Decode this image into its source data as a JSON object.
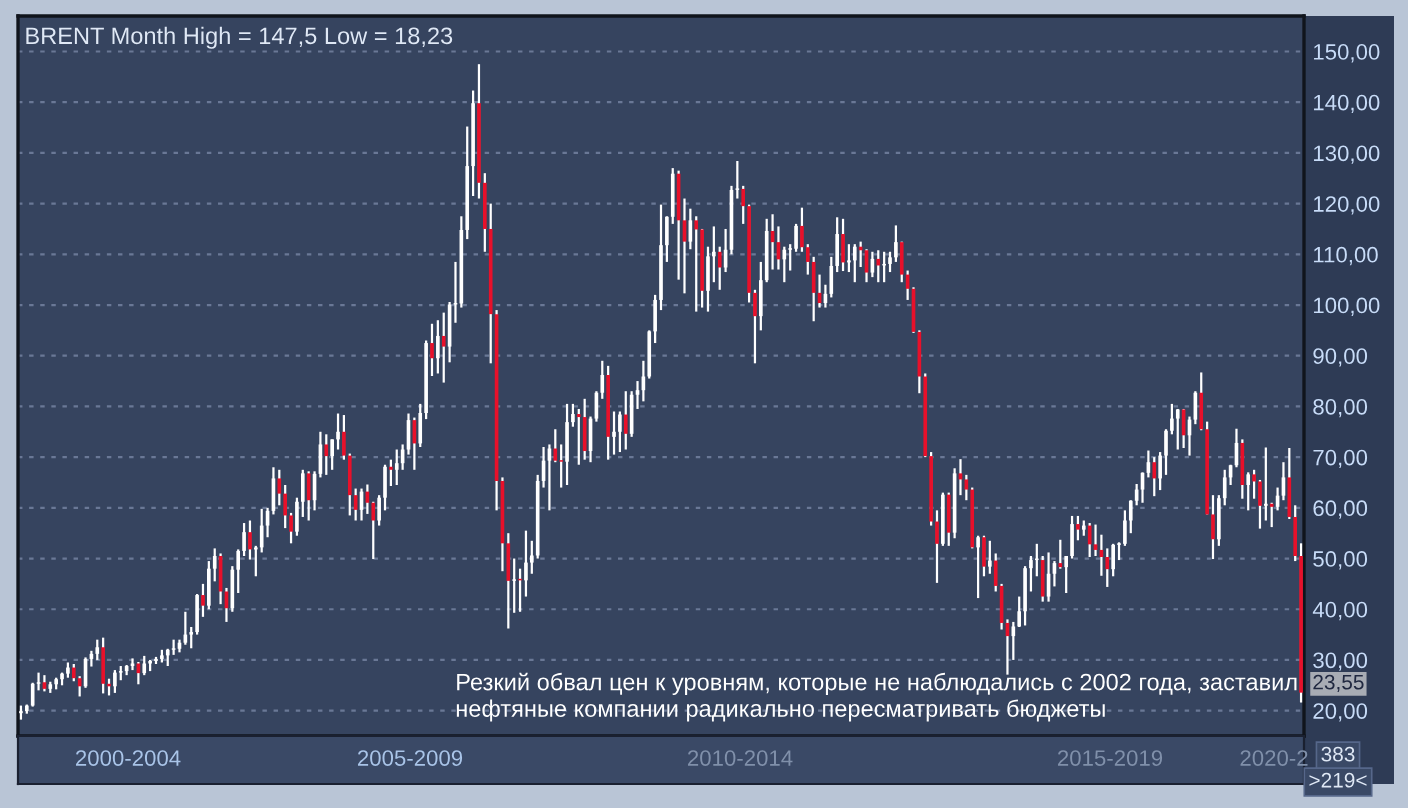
{
  "chart_data": {
    "type": "candlestick",
    "title": "BRENT Month High = 147,5 Low = 18,23",
    "categories": [
      null,
      null,
      null,
      null,
      null,
      null,
      null,
      null,
      null,
      null,
      null,
      null,
      null,
      null,
      null,
      null,
      null,
      null,
      null,
      null,
      null,
      null,
      null,
      null,
      null,
      null,
      null,
      null,
      null,
      null,
      null,
      null,
      null,
      null,
      null,
      null,
      null,
      null,
      null,
      null,
      null,
      null,
      null,
      null,
      null,
      null,
      null,
      null,
      null,
      null,
      null,
      null,
      null,
      null,
      null,
      null,
      null,
      null,
      null,
      null,
      null,
      null,
      null,
      null,
      null,
      null,
      null,
      null,
      null,
      null,
      null,
      null,
      null,
      null,
      null,
      null,
      null,
      null,
      null,
      null,
      null,
      null,
      null,
      null,
      null,
      null,
      null,
      null,
      null,
      null,
      null,
      null,
      null,
      null,
      null,
      null,
      null,
      null,
      null,
      null,
      null,
      null,
      null,
      null,
      null,
      null,
      null,
      null,
      null,
      null,
      null,
      null,
      null,
      null,
      null,
      null,
      null,
      null,
      null,
      null,
      null,
      null,
      null,
      null,
      null,
      null,
      null,
      null,
      null,
      null,
      null,
      null,
      null,
      null,
      null,
      null,
      null,
      null,
      null,
      null,
      null,
      null,
      null,
      null,
      null,
      null,
      null,
      null,
      null,
      null,
      null,
      null,
      null,
      null,
      null,
      null,
      null,
      null,
      null,
      null,
      null,
      null,
      null,
      null,
      null,
      null,
      null,
      null,
      null,
      null,
      null,
      null,
      null,
      null,
      null,
      null,
      null,
      null,
      null,
      null,
      null,
      null,
      null,
      null,
      null,
      null,
      null,
      null,
      null,
      null,
      null,
      null,
      null,
      null,
      null,
      null,
      null,
      null,
      null,
      null,
      null,
      null,
      null,
      null,
      null,
      null,
      null,
      null,
      null,
      null,
      null,
      null,
      null,
      null,
      null,
      null,
      null,
      null,
      null
    ],
    "ohlc": [
      [
        19.5,
        21,
        18.23,
        19.9
      ],
      [
        19.9,
        21.2,
        19.4,
        21
      ],
      [
        21,
        25.5,
        20.8,
        25.3
      ],
      [
        25.3,
        27.5,
        24,
        25.6
      ],
      [
        25.6,
        27,
        23.8,
        24.3
      ],
      [
        24.3,
        25.7,
        23.5,
        25.2
      ],
      [
        25.2,
        26.5,
        24.2,
        26.2
      ],
      [
        26.2,
        27.5,
        25,
        27.3
      ],
      [
        27.3,
        29.5,
        26.5,
        28.5
      ],
      [
        28.5,
        29.2,
        25.8,
        26.4
      ],
      [
        26.4,
        26.8,
        22.8,
        24.8
      ],
      [
        24.8,
        30.5,
        24.5,
        30.2
      ],
      [
        30.2,
        31.8,
        28.7,
        31.2
      ],
      [
        31.2,
        34,
        30,
        32.5
      ],
      [
        32.5,
        34.4,
        23.4,
        25.3
      ],
      [
        25.3,
        26.3,
        23,
        24.8
      ],
      [
        24.8,
        28,
        23.5,
        27.5
      ],
      [
        27.5,
        28.8,
        26,
        27.8
      ],
      [
        27.8,
        29,
        27,
        28.8
      ],
      [
        28.8,
        30.3,
        28,
        29.3
      ],
      [
        29.3,
        29.6,
        25.2,
        27.4
      ],
      [
        27.4,
        30.8,
        27,
        29.3
      ],
      [
        29.3,
        30,
        27.8,
        29.8
      ],
      [
        29.8,
        30.6,
        29.2,
        30.2
      ],
      [
        30.2,
        32,
        29.5,
        30.9
      ],
      [
        30.9,
        32.2,
        28.8,
        32
      ],
      [
        32,
        34,
        31,
        32.2
      ],
      [
        32.2,
        34,
        31.5,
        33.4
      ],
      [
        33.4,
        39.5,
        33,
        35
      ],
      [
        35,
        36.5,
        32.3,
        35.5
      ],
      [
        35.5,
        43,
        35,
        42.8
      ],
      [
        42.8,
        45,
        38.5,
        40.7
      ],
      [
        40.7,
        49.5,
        40,
        48
      ],
      [
        48,
        52,
        45.5,
        50.5
      ],
      [
        50.5,
        51,
        41,
        43.5
      ],
      [
        43.5,
        44.2,
        37.5,
        40.2
      ],
      [
        40.2,
        48.5,
        39.5,
        47.8
      ],
      [
        47.8,
        51.8,
        43.2,
        51.5
      ],
      [
        51.5,
        57,
        50.5,
        55.2
      ],
      [
        55.2,
        57.5,
        49.8,
        51.8
      ],
      [
        51.8,
        52.5,
        46.5,
        52.2
      ],
      [
        52.2,
        59.8,
        51.2,
        56.5
      ],
      [
        56.5,
        60,
        54.2,
        59.4
      ],
      [
        59.4,
        68,
        58.7,
        65.8
      ],
      [
        65.8,
        67.5,
        60.5,
        62.8
      ],
      [
        62.8,
        64.5,
        56,
        58.5
      ],
      [
        58.5,
        59,
        53,
        55.3
      ],
      [
        55.3,
        62,
        54.5,
        61.2
      ],
      [
        61.2,
        67.5,
        58.2,
        66.8
      ],
      [
        66.8,
        67.2,
        57.5,
        61.5
      ],
      [
        61.5,
        67.2,
        59.5,
        66.7
      ],
      [
        66.7,
        75,
        66,
        72.5
      ],
      [
        72.5,
        74.5,
        66.5,
        70.2
      ],
      [
        70.2,
        73.5,
        67.5,
        73.5
      ],
      [
        73.5,
        78.6,
        71.5,
        75
      ],
      [
        75,
        78.3,
        69.5,
        70.3
      ],
      [
        70.3,
        70.7,
        58.5,
        62.5
      ],
      [
        62.5,
        63.8,
        57.5,
        59.6
      ],
      [
        59.6,
        63.8,
        57.5,
        63.2
      ],
      [
        63.2,
        64.6,
        58.8,
        61
      ],
      [
        61,
        61.2,
        49.9,
        57.5
      ],
      [
        57.5,
        62.5,
        56.5,
        62
      ],
      [
        62,
        68.5,
        59.5,
        68.1
      ],
      [
        68.1,
        69.5,
        64.3,
        67.5
      ],
      [
        67.5,
        71.5,
        64.5,
        68.8
      ],
      [
        68.8,
        72.5,
        67.5,
        71.5
      ],
      [
        71.5,
        78.6,
        70.5,
        77.3
      ],
      [
        77.3,
        77.8,
        67.5,
        72.7
      ],
      [
        72.7,
        80.5,
        72,
        78.7
      ],
      [
        78.7,
        93,
        77.5,
        92.5
      ],
      [
        92.5,
        96.3,
        86,
        89.5
      ],
      [
        89.5,
        97,
        86.5,
        93.9
      ],
      [
        93.9,
        98.5,
        84.7,
        91.8
      ],
      [
        91.8,
        100.6,
        88.7,
        100.1
      ],
      [
        100.1,
        108.5,
        96.5,
        100.3
      ],
      [
        100.3,
        117.5,
        99.5,
        114.8
      ],
      [
        114.8,
        135.2,
        113,
        127.4
      ],
      [
        127.4,
        142.3,
        121.5,
        139.8
      ],
      [
        139.8,
        147.5,
        121,
        124.1
      ],
      [
        124.1,
        126,
        110.5,
        115
      ],
      [
        115,
        120,
        88.5,
        98.2
      ],
      [
        98.2,
        99,
        59.5,
        65.3
      ],
      [
        65.3,
        66,
        47.5,
        53
      ],
      [
        53,
        55,
        36.2,
        45.6
      ],
      [
        45.6,
        50,
        39.3,
        45.9
      ],
      [
        45.9,
        48,
        39.5,
        45.7
      ],
      [
        45.7,
        55.5,
        42.5,
        49.2
      ],
      [
        49.2,
        53.5,
        47,
        50.6
      ],
      [
        50.6,
        66.5,
        50,
        65.3
      ],
      [
        65.3,
        72,
        64,
        69.3
      ],
      [
        69.3,
        72.5,
        59.5,
        71.7
      ],
      [
        71.7,
        75.5,
        69,
        69.3
      ],
      [
        69.3,
        72.5,
        64,
        69.1
      ],
      [
        69.1,
        80.5,
        64.5,
        76.9
      ],
      [
        76.9,
        80.5,
        76,
        78.5
      ],
      [
        78.5,
        79.5,
        68.5,
        77.9
      ],
      [
        77.9,
        81.5,
        69.5,
        71.2
      ],
      [
        71.2,
        78,
        69,
        77.6
      ],
      [
        77.6,
        83,
        77,
        82.7
      ],
      [
        82.7,
        89,
        81.5,
        86.2
      ],
      [
        86.2,
        88,
        69.5,
        74
      ],
      [
        74,
        79,
        70.5,
        75
      ],
      [
        75,
        79,
        71,
        78.4
      ],
      [
        78.4,
        83,
        71.5,
        74.6
      ],
      [
        74.6,
        83,
        74,
        82.3
      ],
      [
        82.3,
        85,
        79.5,
        83.2
      ],
      [
        83.2,
        89,
        81,
        85.9
      ],
      [
        85.9,
        95,
        85.5,
        94.8
      ],
      [
        94.8,
        102,
        92.5,
        101
      ],
      [
        101,
        119.8,
        99,
        111.8
      ],
      [
        111.8,
        117.5,
        108.5,
        117.4
      ],
      [
        117.4,
        127,
        116,
        125.9
      ],
      [
        125.9,
        126.5,
        105,
        116.7
      ],
      [
        116.7,
        121,
        102.3,
        112.5
      ],
      [
        112.5,
        119,
        111,
        116.7
      ],
      [
        116.7,
        117.5,
        98.7,
        114.9
      ],
      [
        114.9,
        115,
        99.5,
        102.8
      ],
      [
        102.8,
        111.5,
        98.7,
        109.6
      ],
      [
        109.6,
        115.5,
        104.5,
        110.5
      ],
      [
        110.5,
        111.5,
        103,
        107.4
      ],
      [
        107.4,
        115,
        106.5,
        110.9
      ],
      [
        110.9,
        123.5,
        110,
        122.7
      ],
      [
        122.7,
        128.4,
        121,
        122.9
      ],
      [
        122.9,
        123.5,
        116,
        119.5
      ],
      [
        119.5,
        119.8,
        100.5,
        102.4
      ],
      [
        102.4,
        103,
        88.5,
        97.8
      ],
      [
        97.8,
        108.5,
        95,
        104.9
      ],
      [
        104.9,
        117,
        104.5,
        114.6
      ],
      [
        114.6,
        117.9,
        107,
        112.4
      ],
      [
        112.4,
        115.5,
        107,
        109
      ],
      [
        109,
        111.5,
        104.5,
        110.9
      ],
      [
        110.9,
        112,
        106.8,
        111.1
      ],
      [
        111.1,
        116,
        110.5,
        115.6
      ],
      [
        115.6,
        119.2,
        110.5,
        111.4
      ],
      [
        111.4,
        112,
        106,
        108.5
      ],
      [
        108.5,
        109.5,
        96.8,
        102.4
      ],
      [
        102.4,
        106,
        99.5,
        100.4
      ],
      [
        100.4,
        104,
        99.5,
        102.2
      ],
      [
        102.2,
        109.5,
        101.5,
        107.7
      ],
      [
        107.7,
        117.3,
        106.5,
        114
      ],
      [
        114,
        117,
        106.7,
        108.4
      ],
      [
        108.4,
        112,
        106.5,
        108.8
      ],
      [
        108.8,
        112,
        104.5,
        111.5
      ],
      [
        111.5,
        112.5,
        107.5,
        110.8
      ],
      [
        110.8,
        111,
        104.5,
        106.4
      ],
      [
        106.4,
        110.5,
        105.5,
        109.1
      ],
      [
        109.1,
        110.8,
        104.5,
        107.8
      ],
      [
        107.8,
        110.5,
        104.5,
        108.1
      ],
      [
        108.1,
        110.5,
        106.5,
        109.4
      ],
      [
        109.4,
        115.7,
        108.5,
        112.4
      ],
      [
        112.4,
        112.5,
        104.5,
        106
      ],
      [
        106,
        106.8,
        101,
        103.2
      ],
      [
        103.2,
        103.5,
        94.5,
        94.7
      ],
      [
        94.7,
        95,
        82.6,
        85.9
      ],
      [
        85.9,
        86.5,
        70,
        70.2
      ],
      [
        70.2,
        71,
        56.5,
        57.3
      ],
      [
        57.3,
        59.5,
        45.2,
        52.9
      ],
      [
        52.9,
        63,
        52.5,
        62.6
      ],
      [
        62.6,
        63,
        52.5,
        55.1
      ],
      [
        55.1,
        67.8,
        54,
        66.8
      ],
      [
        66.8,
        69.6,
        62.5,
        65.6
      ],
      [
        65.6,
        66.5,
        61.5,
        63.6
      ],
      [
        63.6,
        64,
        52,
        52.2
      ],
      [
        52.2,
        54.5,
        42.2,
        54.2
      ],
      [
        54.2,
        54.5,
        46.5,
        48.4
      ],
      [
        48.4,
        53.5,
        47,
        49.6
      ],
      [
        49.6,
        51,
        43.5,
        44.6
      ],
      [
        44.6,
        45,
        36,
        37.3
      ],
      [
        37.3,
        38,
        27.1,
        34.7
      ],
      [
        34.7,
        37.5,
        30,
        36.6
      ],
      [
        36.6,
        42.5,
        36.5,
        39.6
      ],
      [
        39.6,
        48.5,
        36.8,
        48.1
      ],
      [
        48.1,
        50.5,
        43.5,
        49.7
      ],
      [
        49.7,
        52.9,
        46.5,
        49.7
      ],
      [
        49.7,
        50.5,
        41.5,
        42.5
      ],
      [
        42.5,
        51.2,
        41.5,
        47
      ],
      [
        47,
        49.5,
        44.5,
        49.1
      ],
      [
        49.1,
        53.7,
        48,
        48.3
      ],
      [
        48.3,
        50.5,
        43.2,
        50.5
      ],
      [
        50.5,
        58.4,
        50,
        56.8
      ],
      [
        56.8,
        58.4,
        53.6,
        55.7
      ],
      [
        55.7,
        57.5,
        54.5,
        56.5
      ],
      [
        56.5,
        57,
        50.3,
        52.8
      ],
      [
        52.8,
        56.7,
        50.5,
        51.7
      ],
      [
        51.7,
        54.7,
        46.6,
        50.3
      ],
      [
        50.3,
        52,
        44.4,
        47.9
      ],
      [
        47.9,
        52.9,
        46.5,
        52.7
      ],
      [
        52.7,
        53.2,
        49.7,
        52.9
      ],
      [
        52.9,
        59.5,
        52.5,
        57.5
      ],
      [
        57.5,
        61.5,
        55,
        61.4
      ],
      [
        61.4,
        64.7,
        60.5,
        63.6
      ],
      [
        63.6,
        67,
        61,
        66.9
      ],
      [
        66.9,
        71.3,
        66,
        69
      ],
      [
        69,
        70,
        62.3,
        65.8
      ],
      [
        65.8,
        71,
        63.5,
        70.3
      ],
      [
        70.3,
        75.5,
        66.5,
        75.2
      ],
      [
        75.2,
        80.5,
        74.5,
        77.6
      ],
      [
        77.6,
        79.5,
        71.5,
        79.4
      ],
      [
        79.4,
        79.5,
        71.8,
        74.3
      ],
      [
        74.3,
        78,
        70.3,
        77.4
      ],
      [
        77.4,
        83,
        76.5,
        82.7
      ],
      [
        82.7,
        86.7,
        75.3,
        75.5
      ],
      [
        75.5,
        77,
        58.7,
        58.7
      ],
      [
        58.7,
        62.5,
        49.9,
        53.8
      ],
      [
        53.8,
        62.5,
        52.5,
        61.9
      ],
      [
        61.9,
        67.5,
        60.5,
        66
      ],
      [
        66,
        68.5,
        64.5,
        68.4
      ],
      [
        68.4,
        75.6,
        68,
        72.8
      ],
      [
        72.8,
        73.5,
        61.8,
        64.5
      ],
      [
        64.5,
        67,
        59.5,
        66.6
      ],
      [
        66.6,
        67.5,
        61.8,
        65.2
      ],
      [
        65.2,
        65.5,
        55.9,
        60.4
      ],
      [
        60.4,
        71.9,
        57.5,
        60.8
      ],
      [
        60.8,
        61,
        56.2,
        60.2
      ],
      [
        60.2,
        64,
        59.5,
        62.4
      ],
      [
        62.4,
        69,
        61.5,
        66
      ],
      [
        66,
        71.8,
        57.8,
        58.2
      ],
      [
        58.2,
        60.5,
        49.5,
        50.5
      ],
      [
        50.5,
        53,
        21.6,
        23.55
      ]
    ],
    "ylim": [
      15,
      157
    ],
    "yticks": [
      {
        "value": 20,
        "label": "20,00"
      },
      {
        "value": 30,
        "label": "30,00"
      },
      {
        "value": 40,
        "label": "40,00"
      },
      {
        "value": 50,
        "label": "50,00"
      },
      {
        "value": 60,
        "label": "60,00"
      },
      {
        "value": 70,
        "label": "70,00"
      },
      {
        "value": 80,
        "label": "80,00"
      },
      {
        "value": 90,
        "label": "90,00"
      },
      {
        "value": 100,
        "label": "100,00"
      },
      {
        "value": 110,
        "label": "110,00"
      },
      {
        "value": 120,
        "label": "120,00"
      },
      {
        "value": 130,
        "label": "130,00"
      },
      {
        "value": 140,
        "label": "140,00"
      },
      {
        "value": 150,
        "label": "150,00"
      }
    ],
    "annotations": [
      "23,55",
      "Резкий обвал цен к уровням, которые не наблюдались с 2002 года, заставил\nнефтяные компании радикально пересматривать бюджеты",
      "2000-2004",
      "2005-2009",
      "2010-2014",
      "2015-2019",
      "2020-2",
      "383",
      ">219<"
    ],
    "grid": "y",
    "tick_labels": "y",
    "legend": false
  }
}
